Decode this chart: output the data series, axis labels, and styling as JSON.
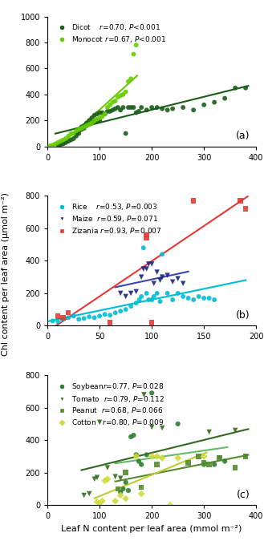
{
  "panel_a": {
    "title": "(a)",
    "xlim": [
      0,
      400
    ],
    "ylim": [
      0,
      1000
    ],
    "xticks": [
      0,
      100,
      200,
      300,
      400
    ],
    "yticks": [
      0,
      200,
      400,
      600,
      800,
      1000
    ],
    "dicot": {
      "x": [
        20,
        25,
        30,
        35,
        40,
        45,
        50,
        55,
        55,
        60,
        60,
        65,
        65,
        70,
        70,
        75,
        75,
        80,
        80,
        85,
        85,
        90,
        90,
        95,
        95,
        100,
        100,
        105,
        110,
        115,
        120,
        125,
        130,
        135,
        140,
        145,
        150,
        155,
        160,
        165,
        170,
        175,
        180,
        190,
        200,
        210,
        220,
        230,
        240,
        260,
        280,
        300,
        320,
        340,
        360,
        380
      ],
      "y": [
        10,
        15,
        20,
        30,
        40,
        50,
        60,
        80,
        100,
        100,
        120,
        130,
        150,
        140,
        160,
        160,
        180,
        170,
        200,
        180,
        220,
        200,
        240,
        200,
        250,
        200,
        260,
        260,
        250,
        270,
        270,
        280,
        290,
        300,
        280,
        300,
        100,
        300,
        300,
        300,
        260,
        270,
        300,
        280,
        300,
        300,
        290,
        280,
        290,
        300,
        280,
        320,
        340,
        370,
        450,
        450
      ],
      "color": "#1a5c1a",
      "label": "Dicot",
      "r": "0.70",
      "p": "<0.001"
    },
    "monocot": {
      "x": [
        5,
        10,
        15,
        20,
        25,
        30,
        35,
        40,
        45,
        50,
        55,
        60,
        65,
        70,
        75,
        80,
        85,
        90,
        95,
        100,
        105,
        110,
        115,
        120,
        125,
        130,
        135,
        140,
        145,
        150,
        155,
        160,
        165,
        170
      ],
      "y": [
        5,
        10,
        20,
        30,
        40,
        50,
        60,
        80,
        100,
        100,
        120,
        130,
        140,
        150,
        160,
        170,
        180,
        200,
        210,
        220,
        230,
        250,
        300,
        320,
        340,
        350,
        380,
        390,
        400,
        420,
        500,
        520,
        710,
        780
      ],
      "color": "#66cc00",
      "label": "Monocot",
      "r": "0.67",
      "p": "<0.001"
    }
  },
  "panel_b": {
    "title": "(b)",
    "xlim": [
      0,
      200
    ],
    "ylim": [
      0,
      800
    ],
    "xticks": [
      0,
      50,
      100,
      150,
      200
    ],
    "yticks": [
      0,
      200,
      400,
      600,
      800
    ],
    "rice": {
      "x": [
        5,
        10,
        15,
        20,
        25,
        30,
        35,
        40,
        45,
        50,
        55,
        60,
        65,
        70,
        75,
        80,
        85,
        88,
        90,
        92,
        95,
        97,
        100,
        102,
        105,
        108,
        110,
        115,
        120,
        125,
        130,
        135,
        140,
        145,
        150,
        155,
        160
      ],
      "y": [
        30,
        25,
        40,
        50,
        60,
        40,
        45,
        55,
        50,
        60,
        70,
        65,
        80,
        90,
        100,
        120,
        140,
        160,
        180,
        480,
        200,
        160,
        160,
        180,
        200,
        150,
        440,
        200,
        160,
        200,
        180,
        170,
        160,
        180,
        170,
        170,
        160
      ],
      "color": "#00bcd4",
      "label": "Rice",
      "r": "0.53",
      "p": "0.003"
    },
    "maize": {
      "x": [
        70,
        75,
        80,
        85,
        90,
        92,
        95,
        97,
        100,
        102,
        105,
        108,
        110,
        115,
        120,
        125,
        130
      ],
      "y": [
        200,
        180,
        200,
        210,
        300,
        350,
        350,
        380,
        380,
        260,
        330,
        280,
        300,
        310,
        270,
        290,
        260
      ],
      "color": "#1a237e",
      "label": "Maize",
      "r": "0.59",
      "p": "0.071"
    },
    "zizania": {
      "x": [
        10,
        15,
        20,
        60,
        95,
        95,
        100,
        140,
        185,
        190
      ],
      "y": [
        60,
        50,
        80,
        20,
        540,
        560,
        20,
        770,
        770,
        720
      ],
      "color": "#e53935",
      "label": "Zizania",
      "r": "0.93",
      "p": "0.007"
    }
  },
  "panel_c": {
    "title": "(c)",
    "xlim": [
      0,
      400
    ],
    "ylim": [
      0,
      800
    ],
    "xticks": [
      0,
      100,
      200,
      300,
      400
    ],
    "yticks": [
      0,
      200,
      400,
      600,
      800
    ],
    "soybean": {
      "x": [
        140,
        145,
        150,
        155,
        160,
        165,
        170,
        175,
        180,
        190,
        200,
        250,
        300,
        320,
        340
      ],
      "y": [
        80,
        100,
        140,
        90,
        420,
        430,
        310,
        270,
        250,
        310,
        690,
        500,
        250,
        250,
        270
      ],
      "color": "#2e7d32",
      "label": "Soybean",
      "r": "0.77",
      "p": "0.028"
    },
    "tomato": {
      "x": [
        70,
        80,
        90,
        95,
        100,
        115,
        130,
        140,
        185,
        200,
        220,
        310,
        330,
        360,
        380
      ],
      "y": [
        60,
        70,
        160,
        170,
        510,
        230,
        175,
        165,
        680,
        480,
        475,
        450,
        290,
        460,
        300
      ],
      "color": "#33691e",
      "label": "Tomato",
      "r": "0.79",
      "p": "0.112"
    },
    "peanut": {
      "x": [
        135,
        150,
        180,
        210,
        270,
        290,
        300,
        310,
        330,
        360,
        380
      ],
      "y": [
        100,
        200,
        110,
        250,
        260,
        300,
        260,
        250,
        290,
        230,
        300
      ],
      "color": "#558b2f",
      "label": "Peanut",
      "r": "0.68",
      "p": "0.066"
    },
    "cotton": {
      "x": [
        95,
        100,
        105,
        110,
        115,
        130,
        140,
        150,
        170,
        180,
        200,
        210,
        220,
        235,
        250,
        300
      ],
      "y": [
        20,
        10,
        25,
        150,
        160,
        25,
        60,
        40,
        300,
        70,
        300,
        300,
        290,
        0,
        290,
        300
      ],
      "color": "#cddc39",
      "label": "Cotton",
      "r": "0.80",
      "p": "0.009"
    }
  },
  "ylabel": "Chl content per leaf area (μmol m⁻²)",
  "xlabel": "Leaf N content per leaf area (mmol m⁻²)"
}
